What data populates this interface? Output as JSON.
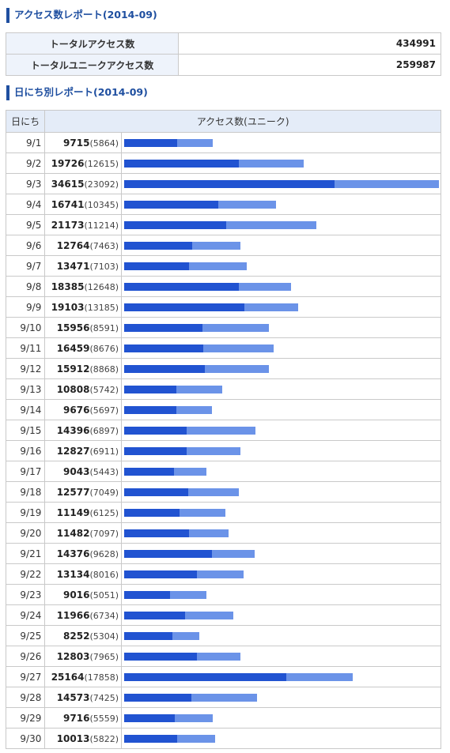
{
  "headings": {
    "access_report": "アクセス数レポート(2014-09)",
    "daily_report": "日にち別レポート(2014-09)"
  },
  "summary": [
    {
      "label": "トータルアクセス数",
      "value": "434991"
    },
    {
      "label": "トータルユニークアクセス数",
      "value": "259987"
    }
  ],
  "daily_table": {
    "columns": {
      "day": "日にち",
      "access": "アクセス数(ユニーク)"
    },
    "max_value": 34615,
    "colors": {
      "total": "#6b93e8",
      "unique": "#2153d1"
    },
    "rows": [
      {
        "day": "9/1",
        "total": 9715,
        "unique": 5864
      },
      {
        "day": "9/2",
        "total": 19726,
        "unique": 12615
      },
      {
        "day": "9/3",
        "total": 34615,
        "unique": 23092
      },
      {
        "day": "9/4",
        "total": 16741,
        "unique": 10345
      },
      {
        "day": "9/5",
        "total": 21173,
        "unique": 11214
      },
      {
        "day": "9/6",
        "total": 12764,
        "unique": 7463
      },
      {
        "day": "9/7",
        "total": 13471,
        "unique": 7103
      },
      {
        "day": "9/8",
        "total": 18385,
        "unique": 12648
      },
      {
        "day": "9/9",
        "total": 19103,
        "unique": 13185
      },
      {
        "day": "9/10",
        "total": 15956,
        "unique": 8591
      },
      {
        "day": "9/11",
        "total": 16459,
        "unique": 8676
      },
      {
        "day": "9/12",
        "total": 15912,
        "unique": 8868
      },
      {
        "day": "9/13",
        "total": 10808,
        "unique": 5742
      },
      {
        "day": "9/14",
        "total": 9676,
        "unique": 5697
      },
      {
        "day": "9/15",
        "total": 14396,
        "unique": 6897
      },
      {
        "day": "9/16",
        "total": 12827,
        "unique": 6911
      },
      {
        "day": "9/17",
        "total": 9043,
        "unique": 5443
      },
      {
        "day": "9/18",
        "total": 12577,
        "unique": 7049
      },
      {
        "day": "9/19",
        "total": 11149,
        "unique": 6125
      },
      {
        "day": "9/20",
        "total": 11482,
        "unique": 7097
      },
      {
        "day": "9/21",
        "total": 14376,
        "unique": 9628
      },
      {
        "day": "9/22",
        "total": 13134,
        "unique": 8016
      },
      {
        "day": "9/23",
        "total": 9016,
        "unique": 5051
      },
      {
        "day": "9/24",
        "total": 11966,
        "unique": 6734
      },
      {
        "day": "9/25",
        "total": 8252,
        "unique": 5304
      },
      {
        "day": "9/26",
        "total": 12803,
        "unique": 7965
      },
      {
        "day": "9/27",
        "total": 25164,
        "unique": 17858
      },
      {
        "day": "9/28",
        "total": 14573,
        "unique": 7425
      },
      {
        "day": "9/29",
        "total": 9716,
        "unique": 5559
      },
      {
        "day": "9/30",
        "total": 10013,
        "unique": 5822
      }
    ]
  }
}
